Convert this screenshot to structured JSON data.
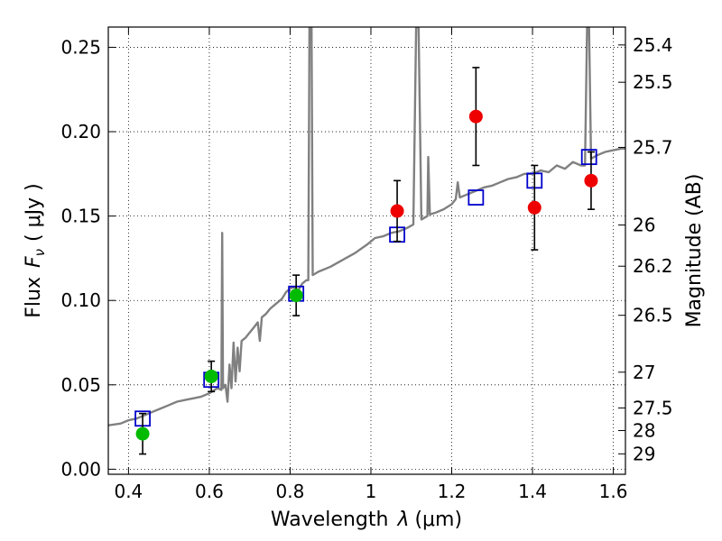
{
  "chart_data": {
    "type": "scatter",
    "xlabel": "Wavelength",
    "xlabel_symbol": "λ",
    "xlabel_unit": "(μm)",
    "ylabel": "Flux",
    "ylabel_symbol": "F",
    "ylabel_subscript": "ν",
    "ylabel_unit": "( μJy )",
    "y2label": "Magnitude (AB)",
    "xlim": [
      0.35,
      1.63
    ],
    "ylim": [
      -0.003,
      0.262
    ],
    "grid": true,
    "x_ticks": [
      0.4,
      0.6,
      0.8,
      1.0,
      1.2,
      1.4,
      1.6
    ],
    "x_tick_labels": [
      "0.4",
      "0.6",
      "0.8",
      "1",
      "1.2",
      "1.4",
      "1.6"
    ],
    "y_ticks": [
      0.0,
      0.05,
      0.1,
      0.15,
      0.2,
      0.25
    ],
    "y_tick_labels": [
      "0.00",
      "0.05",
      "0.10",
      "0.15",
      "0.20",
      "0.25"
    ],
    "y2_ticks": [
      {
        "label": "25.4",
        "flux": 0.2514
      },
      {
        "label": "25.5",
        "flux": 0.2293
      },
      {
        "label": "25.7",
        "flux": 0.1907
      },
      {
        "label": "26",
        "flux": 0.1447
      },
      {
        "label": "26.2",
        "flux": 0.1203
      },
      {
        "label": "26.5",
        "flux": 0.0912
      },
      {
        "label": "27",
        "flux": 0.0575
      },
      {
        "label": "27.5",
        "flux": 0.0363
      },
      {
        "label": "28",
        "flux": 0.0229
      },
      {
        "label": "29",
        "flux": 0.0091
      }
    ],
    "colors": {
      "spectrum": "#808080",
      "model_box": "#0000cc",
      "green": "#00bb00",
      "red": "#ee0000",
      "errorbar": "#000000",
      "grid": "#000000"
    },
    "spectrum": [
      [
        0.35,
        0.026
      ],
      [
        0.38,
        0.027
      ],
      [
        0.4,
        0.029
      ],
      [
        0.42,
        0.03
      ],
      [
        0.44,
        0.032
      ],
      [
        0.46,
        0.034
      ],
      [
        0.48,
        0.036
      ],
      [
        0.5,
        0.038
      ],
      [
        0.52,
        0.04
      ],
      [
        0.54,
        0.041
      ],
      [
        0.56,
        0.042
      ],
      [
        0.58,
        0.043
      ],
      [
        0.6,
        0.045
      ],
      [
        0.62,
        0.048
      ],
      [
        0.63,
        0.047
      ],
      [
        0.632,
        0.14
      ],
      [
        0.634,
        0.048
      ],
      [
        0.64,
        0.05
      ],
      [
        0.645,
        0.04
      ],
      [
        0.65,
        0.062
      ],
      [
        0.655,
        0.048
      ],
      [
        0.66,
        0.075
      ],
      [
        0.665,
        0.052
      ],
      [
        0.67,
        0.072
      ],
      [
        0.675,
        0.058
      ],
      [
        0.68,
        0.076
      ],
      [
        0.69,
        0.078
      ],
      [
        0.7,
        0.081
      ],
      [
        0.71,
        0.084
      ],
      [
        0.72,
        0.087
      ],
      [
        0.725,
        0.076
      ],
      [
        0.73,
        0.09
      ],
      [
        0.74,
        0.092
      ],
      [
        0.75,
        0.095
      ],
      [
        0.76,
        0.097
      ],
      [
        0.77,
        0.099
      ],
      [
        0.78,
        0.101
      ],
      [
        0.79,
        0.105
      ],
      [
        0.8,
        0.107
      ],
      [
        0.81,
        0.108
      ],
      [
        0.82,
        0.106
      ],
      [
        0.83,
        0.11
      ],
      [
        0.84,
        0.112
      ],
      [
        0.845,
        0.112
      ],
      [
        0.848,
        0.262
      ],
      [
        0.853,
        0.262
      ],
      [
        0.856,
        0.115
      ],
      [
        0.87,
        0.117
      ],
      [
        0.9,
        0.12
      ],
      [
        0.93,
        0.124
      ],
      [
        0.96,
        0.128
      ],
      [
        0.99,
        0.133
      ],
      [
        1.01,
        0.137
      ],
      [
        1.03,
        0.138
      ],
      [
        1.05,
        0.14
      ],
      [
        1.07,
        0.141
      ],
      [
        1.09,
        0.143
      ],
      [
        1.105,
        0.145
      ],
      [
        1.112,
        0.262
      ],
      [
        1.118,
        0.262
      ],
      [
        1.125,
        0.148
      ],
      [
        1.14,
        0.15
      ],
      [
        1.142,
        0.185
      ],
      [
        1.146,
        0.151
      ],
      [
        1.16,
        0.152
      ],
      [
        1.18,
        0.154
      ],
      [
        1.2,
        0.157
      ],
      [
        1.21,
        0.16
      ],
      [
        1.215,
        0.17
      ],
      [
        1.22,
        0.161
      ],
      [
        1.24,
        0.163
      ],
      [
        1.26,
        0.165
      ],
      [
        1.28,
        0.167
      ],
      [
        1.3,
        0.168
      ],
      [
        1.32,
        0.17
      ],
      [
        1.34,
        0.172
      ],
      [
        1.36,
        0.173
      ],
      [
        1.38,
        0.175
      ],
      [
        1.4,
        0.175
      ],
      [
        1.42,
        0.177
      ],
      [
        1.44,
        0.176
      ],
      [
        1.46,
        0.18
      ],
      [
        1.48,
        0.178
      ],
      [
        1.5,
        0.182
      ],
      [
        1.52,
        0.18
      ],
      [
        1.53,
        0.18
      ],
      [
        1.535,
        0.262
      ],
      [
        1.54,
        0.262
      ],
      [
        1.545,
        0.184
      ],
      [
        1.56,
        0.186
      ],
      [
        1.58,
        0.188
      ],
      [
        1.6,
        0.189
      ],
      [
        1.62,
        0.19
      ],
      [
        1.63,
        0.19
      ]
    ],
    "model_points": [
      {
        "x": 0.435,
        "y": 0.03
      },
      {
        "x": 0.605,
        "y": 0.053
      },
      {
        "x": 0.815,
        "y": 0.104
      },
      {
        "x": 1.065,
        "y": 0.139
      },
      {
        "x": 1.26,
        "y": 0.161
      },
      {
        "x": 1.405,
        "y": 0.171
      },
      {
        "x": 1.54,
        "y": 0.185
      }
    ],
    "observed_points": [
      {
        "x": 0.435,
        "y": 0.021,
        "err": 0.012,
        "color": "green"
      },
      {
        "x": 0.605,
        "y": 0.055,
        "err": 0.009,
        "color": "green"
      },
      {
        "x": 0.815,
        "y": 0.103,
        "err": 0.012,
        "color": "green"
      },
      {
        "x": 1.065,
        "y": 0.153,
        "err": 0.018,
        "color": "red"
      },
      {
        "x": 1.26,
        "y": 0.209,
        "err": 0.029,
        "color": "red"
      },
      {
        "x": 1.405,
        "y": 0.155,
        "err": 0.025,
        "color": "red"
      },
      {
        "x": 1.545,
        "y": 0.171,
        "err": 0.017,
        "color": "red"
      }
    ]
  }
}
